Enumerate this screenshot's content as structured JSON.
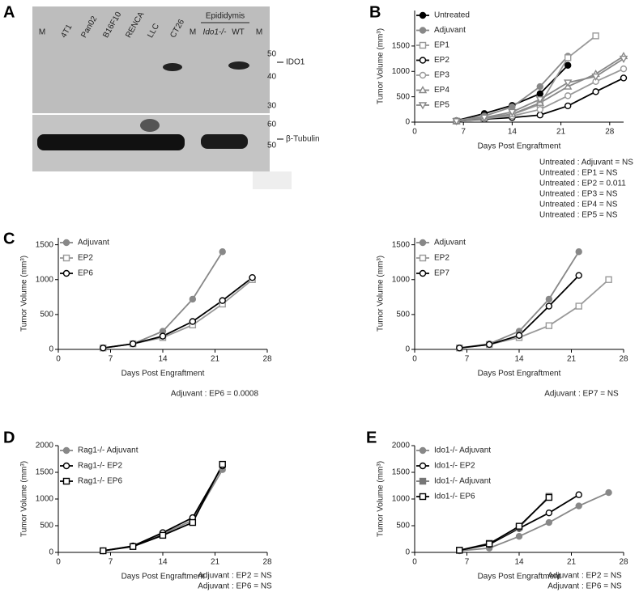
{
  "panel_labels": [
    "A",
    "B",
    "C",
    "D",
    "E"
  ],
  "blot": {
    "lanes": [
      "M",
      "4T1",
      "Pan02",
      "B16F10",
      "RENCA",
      "LLC",
      "CT26",
      "M",
      "Ido1-/-",
      "WT",
      "M"
    ],
    "group_label": "Epididymis",
    "top_markers": [
      "50",
      "40",
      "30"
    ],
    "bottom_markers": [
      "60",
      "50"
    ],
    "bands": [
      "IDO1",
      "β-Tubulin"
    ]
  },
  "chart_data": [
    {
      "type": "line",
      "xlabel": "Days Post Engraftment",
      "ylabel": "Tumor Volume (mm³)",
      "legend": "upper left",
      "xlim": [
        0,
        30
      ],
      "ylim": [
        0,
        2200
      ],
      "xticks": [
        0,
        7,
        14,
        21,
        28
      ],
      "yticks": [
        0,
        500,
        1000,
        1500
      ],
      "x": [
        6,
        10,
        14,
        18,
        22,
        26,
        30
      ],
      "series": [
        {
          "name": "Untreated",
          "color": "#000000",
          "marker": "circle-filled",
          "values": [
            30,
            170,
            330,
            560,
            1120,
            null,
            null
          ]
        },
        {
          "name": "Adjuvant",
          "color": "#888888",
          "marker": "circle-filled",
          "values": [
            30,
            120,
            300,
            700,
            1300,
            null,
            null
          ]
        },
        {
          "name": "EP1",
          "color": "#999999",
          "marker": "square-open",
          "values": [
            20,
            80,
            150,
            350,
            1270,
            1700,
            null
          ]
        },
        {
          "name": "EP2",
          "color": "#000000",
          "marker": "circle-open",
          "values": [
            20,
            60,
            90,
            140,
            320,
            600,
            870
          ]
        },
        {
          "name": "EP3",
          "color": "#999999",
          "marker": "circle-open",
          "values": [
            20,
            70,
            120,
            250,
            520,
            800,
            1050
          ]
        },
        {
          "name": "EP4",
          "color": "#888888",
          "marker": "triangle-up",
          "values": [
            20,
            80,
            160,
            380,
            700,
            950,
            1300
          ]
        },
        {
          "name": "EP5",
          "color": "#888888",
          "marker": "triangle-down",
          "values": [
            20,
            90,
            200,
            450,
            780,
            900,
            1250
          ]
        }
      ],
      "annotations": [
        "Untreated : Adjuvant = NS",
        "Untreated : EP1 = NS",
        "Untreated : EP2 = 0.011",
        "Untreated : EP3 = NS",
        "Untreated : EP4 = NS",
        "Untreated : EP5 = NS"
      ]
    },
    {
      "type": "line",
      "xlabel": "Days Post Engraftment",
      "ylabel": "Tumor Volume (mm³)",
      "legend": "upper left",
      "xlim": [
        0,
        28
      ],
      "ylim": [
        0,
        1600
      ],
      "xticks": [
        0,
        7,
        14,
        21,
        28
      ],
      "yticks": [
        0,
        500,
        1000,
        1500
      ],
      "x": [
        6,
        10,
        14,
        18,
        22,
        26
      ],
      "series": [
        {
          "name": "Adjuvant",
          "color": "#888888",
          "marker": "circle-filled",
          "values": [
            20,
            80,
            260,
            720,
            1400,
            null
          ]
        },
        {
          "name": "EP2",
          "color": "#999999",
          "marker": "square-open",
          "values": [
            20,
            80,
            170,
            350,
            650,
            1000
          ]
        },
        {
          "name": "EP6",
          "color": "#000000",
          "marker": "circle-open",
          "values": [
            20,
            80,
            190,
            400,
            700,
            1030
          ]
        }
      ],
      "annotations": [
        "Adjuvant : EP6 = 0.0008"
      ]
    },
    {
      "type": "line",
      "xlabel": "Days Post Engraftment",
      "ylabel": "Tumor Volume (mm³)",
      "legend": "upper left",
      "xlim": [
        0,
        28
      ],
      "ylim": [
        0,
        1600
      ],
      "xticks": [
        0,
        7,
        14,
        21,
        28
      ],
      "yticks": [
        0,
        500,
        1000,
        1500
      ],
      "x": [
        6,
        10,
        14,
        18,
        22,
        26
      ],
      "series": [
        {
          "name": "Adjuvant",
          "color": "#888888",
          "marker": "circle-filled",
          "values": [
            20,
            80,
            260,
            720,
            1400,
            null
          ]
        },
        {
          "name": "EP2",
          "color": "#999999",
          "marker": "square-open",
          "values": [
            20,
            70,
            170,
            340,
            620,
            1000
          ]
        },
        {
          "name": "EP7",
          "color": "#000000",
          "marker": "circle-open",
          "values": [
            20,
            70,
            200,
            620,
            1060,
            null
          ]
        }
      ],
      "annotations": [
        "Adjuvant : EP7 = NS"
      ]
    },
    {
      "type": "line",
      "xlabel": "Days Post Engraftment",
      "ylabel": "Tumor Volume (mm³)",
      "legend": "upper left",
      "xlim": [
        0,
        28
      ],
      "ylim": [
        0,
        2000
      ],
      "xticks": [
        0,
        7,
        14,
        21,
        28
      ],
      "yticks": [
        0,
        500,
        1000,
        1500,
        2000
      ],
      "x": [
        6,
        10,
        14,
        18,
        22
      ],
      "series": [
        {
          "name": "Rag1-/- Adjuvant",
          "color": "#888888",
          "marker": "circle-filled",
          "values": [
            30,
            120,
            350,
            600,
            1550
          ]
        },
        {
          "name": "Rag1-/- EP2",
          "color": "#000000",
          "marker": "circle-open",
          "values": [
            30,
            120,
            370,
            650,
            1620
          ]
        },
        {
          "name": "Rag1-/- EP6",
          "color": "#000000",
          "marker": "square-open",
          "values": [
            30,
            110,
            320,
            560,
            1650
          ]
        }
      ],
      "annotations": [
        "Adjuvant : EP2 = NS",
        "Adjuvant : EP6 = NS"
      ]
    },
    {
      "type": "line",
      "xlabel": "Days Post Engraftment",
      "ylabel": "Tumor Volume (mm³)",
      "legend": "upper left",
      "xlim": [
        0,
        28
      ],
      "ylim": [
        0,
        2000
      ],
      "xticks": [
        0,
        7,
        14,
        21,
        28
      ],
      "yticks": [
        0,
        500,
        1000,
        1500,
        2000
      ],
      "x": [
        6,
        10,
        14,
        18,
        22,
        26
      ],
      "series": [
        {
          "name": "Ido1-/- Adjuvant",
          "color": "#888888",
          "marker": "circle-filled",
          "values": [
            30,
            80,
            300,
            560,
            870,
            1120
          ]
        },
        {
          "name": "Ido1-/- EP2",
          "color": "#000000",
          "marker": "circle-open",
          "values": [
            40,
            150,
            450,
            740,
            1080,
            null
          ]
        },
        {
          "name": "Ido1-/- Adjuvant",
          "color": "#777777",
          "marker": "square-filled",
          "values": [
            40,
            170,
            470,
            1050,
            null,
            null
          ]
        },
        {
          "name": "Ido1-/- EP6",
          "color": "#000000",
          "marker": "square-open",
          "values": [
            40,
            160,
            490,
            1030,
            null,
            null
          ]
        }
      ],
      "annotations": [
        "Adjuvant : EP2 = NS",
        "Adjuvant : EP6 = NS"
      ]
    }
  ]
}
